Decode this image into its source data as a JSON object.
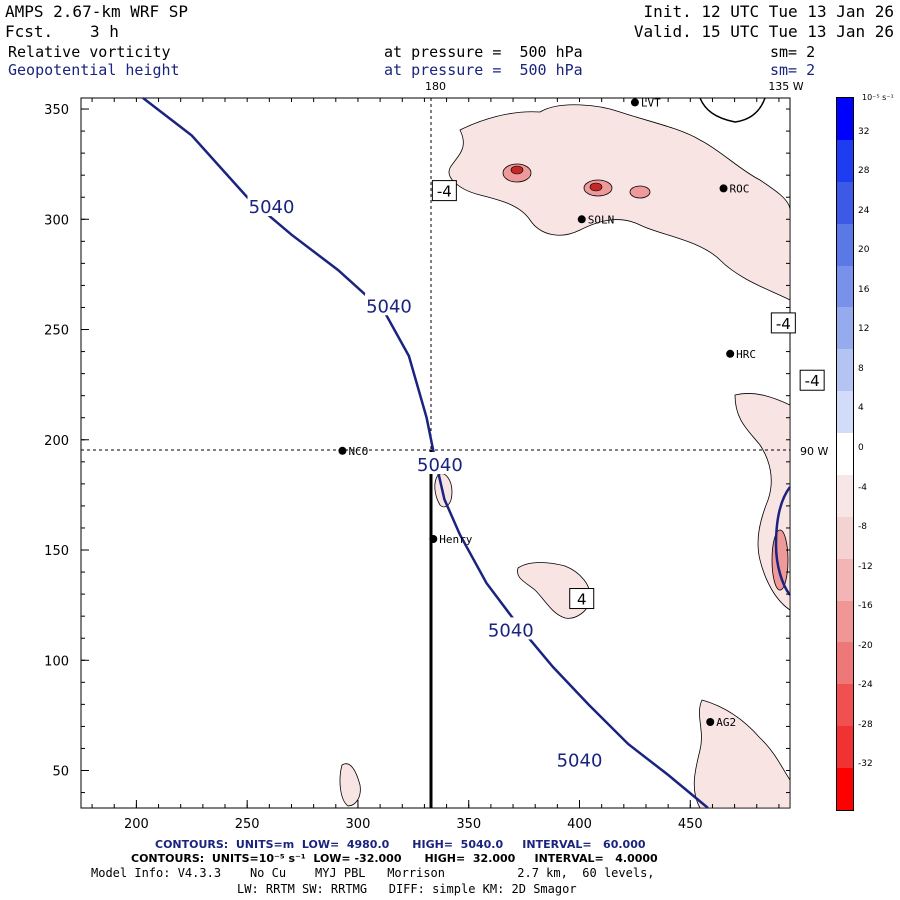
{
  "header": {
    "model": "AMPS 2.67-km WRF SP",
    "fcst_label": "Fcst.",
    "fcst_value": "3 h",
    "init": "Init. 12 UTC Tue 13 Jan 26",
    "valid": "Valid. 15 UTC Tue 13 Jan 26",
    "field1": "Relative vorticity",
    "field1_level": "at pressure =  500 hPa",
    "field1_sm": "sm= 2",
    "field2": "Geopotential height",
    "field2_level": "at pressure =  500 hPa",
    "field2_sm": "sm= 2"
  },
  "map": {
    "meridian_180": "180",
    "meridian_135w": "135 W",
    "meridian_90w": "90 W",
    "x_ticks": [
      "200",
      "250",
      "300",
      "350",
      "400",
      "450"
    ],
    "y_ticks": [
      "350",
      "300",
      "250",
      "200",
      "150",
      "100",
      "50"
    ],
    "stations": [
      {
        "name": "NCO",
        "x": 293,
        "y": 195
      },
      {
        "name": "Henry",
        "x": 334,
        "y": 155
      },
      {
        "name": "AG2",
        "x": 459,
        "y": 72
      },
      {
        "name": "HRC",
        "x": 468,
        "y": 239
      },
      {
        "name": "ROC",
        "x": 465,
        "y": 314
      },
      {
        "name": "SOLN",
        "x": 401,
        "y": 300
      },
      {
        "name": "LVT",
        "x": 425,
        "y": 353
      }
    ],
    "height_labels": [
      {
        "text": "5040",
        "x": 261,
        "y": 306
      },
      {
        "text": "5040",
        "x": 314,
        "y": 261
      },
      {
        "text": "5040",
        "x": 337,
        "y": 189
      },
      {
        "text": "5040",
        "x": 369,
        "y": 114
      },
      {
        "text": "5040",
        "x": 400,
        "y": 55
      }
    ],
    "vort_labels": [
      {
        "text": "-4",
        "x": 339,
        "y": 313
      },
      {
        "text": "-4",
        "x": 492,
        "y": 253
      },
      {
        "text": "-4",
        "x": 505,
        "y": 227
      },
      {
        "text": "4",
        "x": 401,
        "y": 128
      }
    ]
  },
  "colorbar": {
    "unit": "10⁻⁵ s⁻¹",
    "ticks": [
      "32",
      "28",
      "24",
      "20",
      "16",
      "12",
      "8",
      "4",
      "0",
      "-4",
      "-8",
      "-12",
      "-16",
      "-20",
      "-24",
      "-28",
      "-32"
    ],
    "colors": [
      "#0000ff",
      "#1e3cf0",
      "#3c5ae6",
      "#5a78e6",
      "#7891ea",
      "#96aaee",
      "#b4c3f2",
      "#d2dcf8",
      "#ffffff",
      "#f8e6e6",
      "#f5d2d2",
      "#f2b4b4",
      "#f09696",
      "#ee7878",
      "#f05050",
      "#f03232",
      "#ff0000"
    ]
  },
  "footer": {
    "contours1": "CONTOURS:  UNITS=m  LOW=  4980.0      HIGH=  5040.0     INTERVAL=   60.000",
    "contours2": "CONTOURS:  UNITS=10⁻⁵ s⁻¹  LOW= -32.000      HIGH=  32.000     INTERVAL=   4.0000",
    "model_info": "Model Info: V4.3.3    No Cu    MYJ PBL   Morrison          2.7 km,  60 levels,",
    "model_info2": "LW: RRTM SW: RRTMG   DIFF: simple KM: 2D Smagor"
  },
  "chart_data": {
    "type": "contour-map",
    "title": "Relative vorticity / Geopotential height at 500 hPa",
    "xlim": [
      175,
      495
    ],
    "ylim": [
      33,
      355
    ],
    "height_contour_5040": [
      [
        203,
        355
      ],
      [
        225,
        338
      ],
      [
        250,
        310
      ],
      [
        270,
        293
      ],
      [
        291,
        277
      ],
      [
        312,
        258
      ],
      [
        323,
        238
      ],
      [
        331,
        210
      ],
      [
        334,
        195
      ],
      [
        339,
        173
      ],
      [
        346,
        157
      ],
      [
        358,
        135
      ],
      [
        373,
        115
      ],
      [
        388,
        97
      ],
      [
        404,
        80
      ],
      [
        422,
        62
      ],
      [
        440,
        48
      ],
      [
        458,
        33
      ]
    ]
  }
}
